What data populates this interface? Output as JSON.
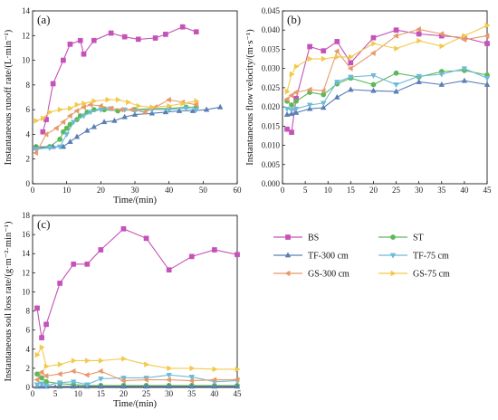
{
  "chart_data": [
    {
      "panel": "(a)",
      "type": "line",
      "xlabel": "Time/(min)",
      "ylabel": "Instantaneous runoff rate/(L·min⁻¹)",
      "xlim": [
        0,
        60
      ],
      "ylim": [
        0,
        14
      ],
      "xticks": [
        0,
        10,
        20,
        30,
        40,
        50,
        60
      ],
      "yticks": [
        0,
        2,
        4,
        6,
        8,
        10,
        12,
        14
      ],
      "series": [
        {
          "name": "BS",
          "color": "#c552b8",
          "marker": "square",
          "x": [
            3,
            4,
            6,
            9,
            11,
            14,
            15,
            18,
            23,
            27,
            31,
            36,
            39,
            44,
            48
          ],
          "y": [
            4.2,
            5.2,
            8.1,
            10.0,
            11.3,
            11.6,
            10.5,
            11.6,
            12.2,
            11.9,
            11.7,
            11.8,
            12.1,
            12.7,
            12.3
          ]
        },
        {
          "name": "ST",
          "color": "#5db85a",
          "marker": "circle",
          "x": [
            1,
            5,
            8,
            9,
            10,
            11,
            13,
            14,
            16,
            18,
            21,
            25,
            30,
            35,
            40,
            45,
            48
          ],
          "y": [
            3.0,
            3.0,
            3.6,
            4.2,
            4.5,
            4.8,
            5.2,
            5.5,
            5.8,
            6.0,
            6.0,
            5.9,
            6.0,
            6.1,
            6.1,
            6.2,
            6.2
          ]
        },
        {
          "name": "TF-300 cm",
          "color": "#5a7fb5",
          "marker": "triangle",
          "x": [
            1,
            6,
            9,
            11,
            13,
            16,
            18,
            21,
            24,
            27,
            30,
            35,
            39,
            43,
            47,
            51,
            55
          ],
          "y": [
            2.9,
            3.0,
            3.0,
            3.4,
            3.8,
            4.3,
            4.6,
            5.0,
            5.1,
            5.4,
            5.6,
            5.7,
            5.8,
            5.9,
            5.9,
            6.0,
            6.2
          ]
        },
        {
          "name": "TF-75 cm",
          "color": "#6dbbd8",
          "marker": "triangle-down",
          "x": [
            1,
            5,
            8,
            10,
            12,
            15,
            17,
            20,
            23,
            27,
            30,
            35,
            40,
            45,
            48
          ],
          "y": [
            2.8,
            2.9,
            3.0,
            4.0,
            5.0,
            5.5,
            5.8,
            6.0,
            6.1,
            6.0,
            5.9,
            6.0,
            6.0,
            6.1,
            6.0
          ]
        },
        {
          "name": "GS-300 cm",
          "color": "#e8996a",
          "marker": "triangle-left",
          "x": [
            1,
            4,
            7,
            9,
            11,
            13,
            15,
            17,
            20,
            23,
            26,
            29,
            33,
            36,
            40,
            44,
            48
          ],
          "y": [
            2.5,
            4.0,
            4.5,
            5.0,
            5.5,
            5.9,
            6.2,
            6.4,
            6.3,
            6.1,
            6.0,
            6.0,
            5.8,
            6.2,
            6.8,
            6.6,
            6.4
          ]
        },
        {
          "name": "GS-75 cm",
          "color": "#f2c94c",
          "marker": "triangle-right",
          "x": [
            1,
            3,
            5,
            8,
            11,
            13,
            15,
            18,
            22,
            25,
            28,
            31,
            35,
            40,
            44,
            48
          ],
          "y": [
            5.1,
            5.3,
            5.8,
            6.0,
            6.1,
            6.4,
            6.5,
            6.7,
            6.8,
            6.8,
            6.6,
            6.3,
            6.2,
            6.3,
            6.5,
            6.7
          ]
        }
      ]
    },
    {
      "panel": "(b)",
      "type": "line",
      "xlabel": "",
      "ylabel": "Instantaneous flow velocity/(m·s⁻¹)",
      "xlim": [
        0,
        45
      ],
      "ylim": [
        0,
        0.045
      ],
      "xticks": [
        0,
        5,
        10,
        15,
        20,
        25,
        30,
        35,
        40,
        45
      ],
      "yticks": [
        "0.000",
        "0.005",
        "0.010",
        "0.015",
        "0.020",
        "0.025",
        "0.030",
        "0.035",
        "0.040",
        "0.045"
      ],
      "series": [
        {
          "name": "BS",
          "color": "#c552b8",
          "marker": "square",
          "x": [
            1,
            2,
            3,
            6,
            9,
            12,
            15,
            20,
            25,
            30,
            35,
            40,
            45
          ],
          "y": [
            0.0142,
            0.0134,
            0.0222,
            0.0357,
            0.0346,
            0.037,
            0.0315,
            0.038,
            0.04,
            0.039,
            0.0385,
            0.038,
            0.0365
          ]
        },
        {
          "name": "ST",
          "color": "#5db85a",
          "marker": "circle",
          "x": [
            1,
            2,
            3,
            6,
            9,
            12,
            15,
            20,
            25,
            30,
            35,
            40,
            45
          ],
          "y": [
            0.0215,
            0.0205,
            0.0215,
            0.0238,
            0.0232,
            0.026,
            0.0275,
            0.0258,
            0.0288,
            0.0278,
            0.0292,
            0.0295,
            0.0283
          ]
        },
        {
          "name": "TF-300 cm",
          "color": "#5a7fb5",
          "marker": "triangle",
          "x": [
            1,
            2,
            3,
            6,
            9,
            12,
            15,
            20,
            25,
            30,
            35,
            40,
            45
          ],
          "y": [
            0.018,
            0.0182,
            0.0185,
            0.0195,
            0.0198,
            0.0225,
            0.0245,
            0.0242,
            0.024,
            0.0265,
            0.0258,
            0.0268,
            0.0258
          ]
        },
        {
          "name": "TF-75 cm",
          "color": "#6dbbd8",
          "marker": "triangle-down",
          "x": [
            1,
            2,
            3,
            6,
            9,
            12,
            15,
            20,
            25,
            30,
            35,
            40,
            45
          ],
          "y": [
            0.0195,
            0.0192,
            0.0195,
            0.0205,
            0.021,
            0.0265,
            0.0278,
            0.0282,
            0.0258,
            0.028,
            0.0285,
            0.03,
            0.0275
          ]
        },
        {
          "name": "GS-300 cm",
          "color": "#e8996a",
          "marker": "triangle-left",
          "x": [
            1,
            2,
            3,
            6,
            9,
            12,
            15,
            20,
            25,
            30,
            35,
            40,
            45
          ],
          "y": [
            0.022,
            0.023,
            0.0238,
            0.0245,
            0.0242,
            0.0345,
            0.03,
            0.034,
            0.0385,
            0.0402,
            0.039,
            0.0375,
            0.0385
          ]
        },
        {
          "name": "GS-75 cm",
          "color": "#f2c94c",
          "marker": "triangle-right",
          "x": [
            1,
            2,
            3,
            6,
            9,
            12,
            15,
            20,
            25,
            30,
            35,
            40,
            45
          ],
          "y": [
            0.024,
            0.0285,
            0.0305,
            0.0325,
            0.0325,
            0.033,
            0.033,
            0.0365,
            0.0352,
            0.0372,
            0.0358,
            0.0385,
            0.0412
          ]
        }
      ]
    },
    {
      "panel": "(c)",
      "type": "line",
      "xlabel": "Time/(min)",
      "ylabel": "Instantaneous soil loss rate/(g·m⁻²·min⁻¹)",
      "xlim": [
        0,
        45
      ],
      "ylim": [
        0,
        18
      ],
      "xticks": [
        0,
        5,
        10,
        15,
        20,
        25,
        30,
        35,
        40,
        45
      ],
      "yticks": [
        0,
        2,
        4,
        6,
        8,
        10,
        12,
        14,
        16,
        18
      ],
      "series": [
        {
          "name": "BS",
          "color": "#c552b8",
          "marker": "square",
          "x": [
            1,
            2,
            3,
            6,
            9,
            12,
            15,
            20,
            25,
            30,
            35,
            40,
            45
          ],
          "y": [
            8.3,
            5.2,
            6.6,
            10.9,
            12.9,
            12.9,
            14.4,
            16.6,
            15.6,
            12.3,
            13.7,
            14.4,
            13.9
          ]
        },
        {
          "name": "ST",
          "color": "#5db85a",
          "marker": "circle",
          "x": [
            1,
            2,
            3,
            6,
            9,
            12,
            15,
            20,
            25,
            30,
            35,
            40,
            45
          ],
          "y": [
            1.4,
            1.0,
            0.6,
            0.4,
            0.3,
            0.2,
            0.2,
            0.2,
            0.2,
            0.2,
            0.2,
            0.2,
            0.2
          ]
        },
        {
          "name": "TF-300 cm",
          "color": "#5a7fb5",
          "marker": "triangle",
          "x": [
            1,
            2,
            3,
            6,
            9,
            12,
            15,
            20,
            25,
            30,
            35,
            40,
            45
          ],
          "y": [
            0.1,
            0.1,
            0.1,
            0.1,
            0.1,
            0.1,
            0.1,
            0.1,
            0.1,
            0.1,
            0.1,
            0.1,
            0.1
          ]
        },
        {
          "name": "TF-75 cm",
          "color": "#6dbbd8",
          "marker": "triangle-down",
          "x": [
            1,
            2,
            3,
            6,
            9,
            12,
            15,
            20,
            25,
            30,
            35,
            40,
            45
          ],
          "y": [
            0.3,
            0.4,
            0.2,
            0.5,
            0.6,
            0.3,
            0.9,
            1.0,
            1.0,
            1.3,
            1.1,
            0.6,
            0.7
          ]
        },
        {
          "name": "GS-300 cm",
          "color": "#e8996a",
          "marker": "triangle-left",
          "x": [
            1,
            2,
            3,
            6,
            9,
            12,
            15,
            20,
            25,
            30,
            35,
            40,
            45
          ],
          "y": [
            0.8,
            1.6,
            1.2,
            1.4,
            1.7,
            1.3,
            1.7,
            0.7,
            0.8,
            0.8,
            0.7,
            0.8,
            0.8
          ]
        },
        {
          "name": "GS-75 cm",
          "color": "#f2c94c",
          "marker": "triangle-right",
          "x": [
            1,
            2,
            3,
            6,
            9,
            12,
            15,
            20,
            25,
            30,
            35,
            40,
            45
          ],
          "y": [
            3.4,
            4.2,
            2.2,
            2.4,
            2.8,
            2.8,
            2.8,
            3.0,
            2.4,
            2.0,
            2.0,
            1.9,
            1.9
          ]
        }
      ]
    }
  ],
  "legend": [
    {
      "name": "BS"
    },
    {
      "name": "ST"
    },
    {
      "name": "TF-300 cm"
    },
    {
      "name": "TF-75 cm"
    },
    {
      "name": "GS-300 cm"
    },
    {
      "name": "GS-75 cm"
    }
  ],
  "colors": {
    "BS": "#c552b8",
    "ST": "#5db85a",
    "TF-300 cm": "#5a7fb5",
    "TF-75 cm": "#6dbbd8",
    "GS-300 cm": "#e8996a",
    "GS-75 cm": "#f2c94c"
  }
}
